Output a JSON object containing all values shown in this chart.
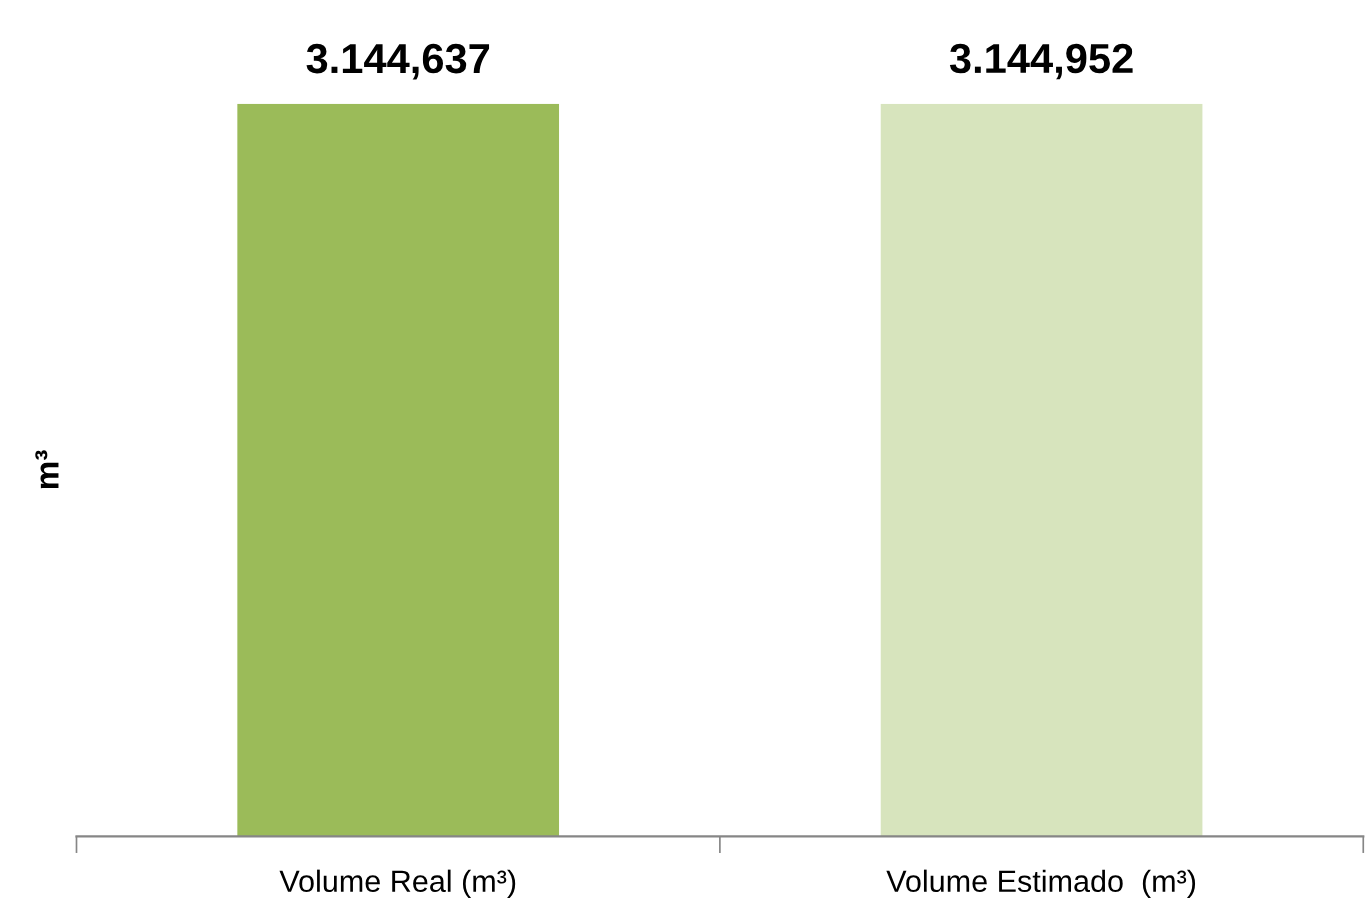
{
  "chart_data": {
    "type": "bar",
    "ylabel": "m³",
    "categories": [
      "Volume Real (m³)",
      "Volume Estimado  (m³)"
    ],
    "values": [
      3144.637,
      3144.952
    ],
    "value_labels": [
      "3.144,637",
      "3.144,952"
    ],
    "colors": [
      "#9bbb59",
      "#d7e4bd"
    ],
    "tick_labels": "x",
    "grid": false,
    "legend": false
  }
}
